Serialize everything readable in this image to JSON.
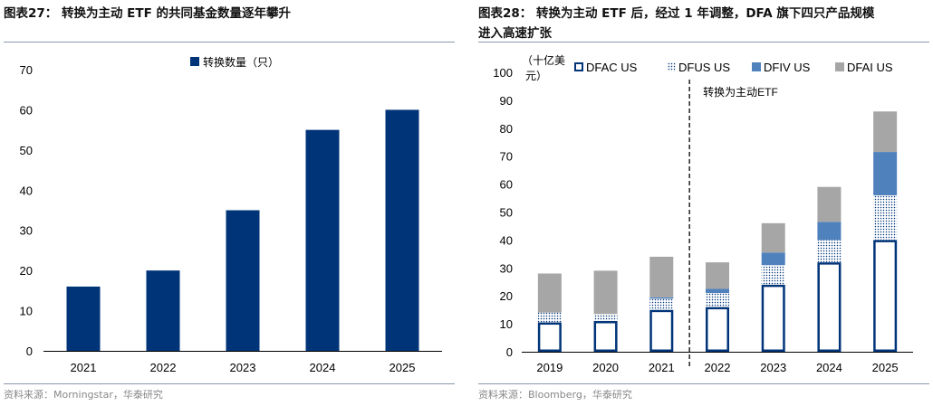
{
  "left": {
    "title": "图表27： 转换为主动 ETF 的共同基金数量逐年攀升",
    "source": "资料来源：Morningstar，华泰研究",
    "chart_data": {
      "type": "bar",
      "categories": [
        "2021",
        "2022",
        "2023",
        "2024",
        "2025"
      ],
      "series": [
        {
          "name": "转换数量（只）",
          "values": [
            16,
            20,
            35,
            55,
            60
          ]
        }
      ],
      "ylim": [
        0,
        70
      ],
      "yticks": [
        0,
        10,
        20,
        30,
        40,
        50,
        60,
        70
      ],
      "legend": "top-center",
      "color": "#003478"
    }
  },
  "right": {
    "title_line1": "图表28： 转换为主动 ETF 后，经过 1 年调整，DFA 旗下四只产品规模",
    "title_line2": "进入高速扩张",
    "source": "资料来源：Bloomberg，华泰研究",
    "chart_data": {
      "type": "bar",
      "stacked": true,
      "ylabel_line1": "（十亿美",
      "ylabel_line2": "元）",
      "categories": [
        "2019",
        "2020",
        "2021",
        "2022",
        "2023",
        "2024",
        "2025"
      ],
      "series": [
        {
          "name": "DFAC US",
          "values": [
            10.5,
            11,
            15,
            16,
            24,
            32,
            40
          ],
          "style": "outline",
          "color": "#003478"
        },
        {
          "name": "DFUS US",
          "values": [
            3.5,
            2.5,
            4,
            5,
            7,
            8,
            16
          ],
          "style": "dotted",
          "color": "#003478"
        },
        {
          "name": "DFIV US",
          "values": [
            0,
            0,
            0.5,
            1.5,
            4.5,
            6.5,
            15.5
          ],
          "style": "solid",
          "color": "#4f81bd"
        },
        {
          "name": "DFAI US",
          "values": [
            14,
            15.5,
            14.5,
            9.5,
            10.5,
            12.5,
            14.5
          ],
          "style": "solid",
          "color": "#a6a6a6"
        }
      ],
      "ylim": [
        0,
        100
      ],
      "yticks": [
        0,
        10,
        20,
        30,
        40,
        50,
        60,
        70,
        80,
        90,
        100
      ],
      "legend": "top",
      "annotation": "转换为主动ETF",
      "divider_after": "2021"
    }
  }
}
